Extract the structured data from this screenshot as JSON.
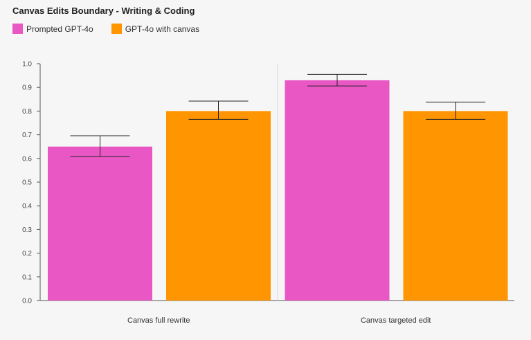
{
  "chart_data": {
    "type": "bar",
    "title": "Canvas Edits Boundary - Writing & Coding",
    "categories": [
      "Canvas full rewrite",
      "Canvas targeted edit"
    ],
    "series": [
      {
        "name": "Prompted GPT-4o",
        "color": "#e957c4",
        "values": [
          0.65,
          0.93
        ],
        "error_low": [
          0.608,
          0.906
        ],
        "error_high": [
          0.696,
          0.955
        ]
      },
      {
        "name": "GPT-4o with canvas",
        "color": "#ff9500",
        "values": [
          0.8,
          0.8
        ],
        "error_low": [
          0.765,
          0.765
        ],
        "error_high": [
          0.842,
          0.838
        ]
      }
    ],
    "ylim": [
      0,
      1.0
    ],
    "yticks": [
      "0.0",
      "0.1",
      "0.2",
      "0.3",
      "0.4",
      "0.5",
      "0.6",
      "0.7",
      "0.8",
      "0.9",
      "1.0"
    ],
    "grid": false,
    "legend_position": "top-left"
  }
}
